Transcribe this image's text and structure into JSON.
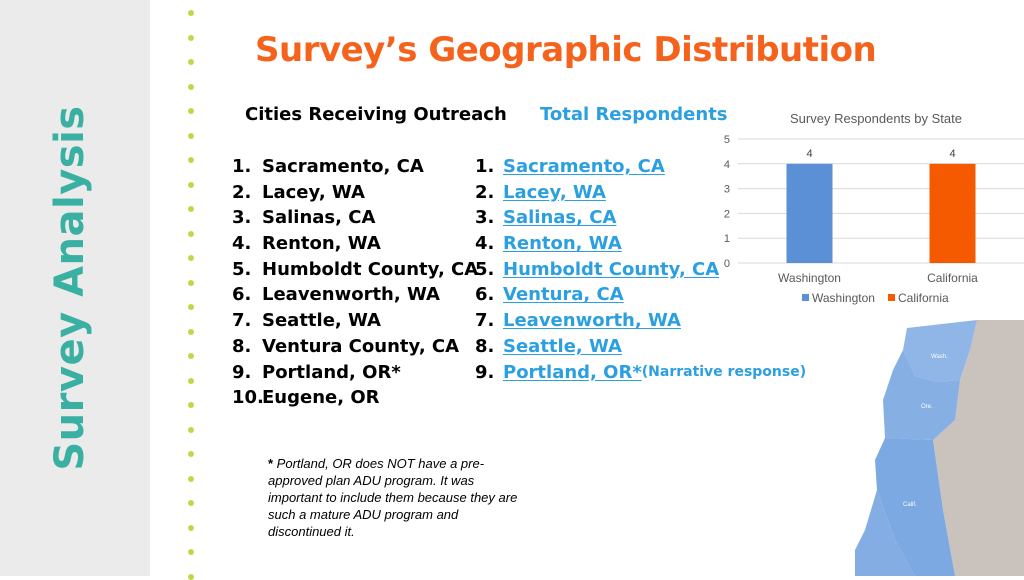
{
  "sidebar": {
    "vertical_title": "Survey Analysis"
  },
  "title": "Survey’s Geographic Distribution",
  "outreach": {
    "heading": "Cities Receiving Outreach",
    "items": [
      {
        "num": "1.",
        "name": "Sacramento, CA"
      },
      {
        "num": "2.",
        "name": "Lacey, WA"
      },
      {
        "num": "3.",
        "name": "Salinas, CA"
      },
      {
        "num": "4.",
        "name": "Renton, WA"
      },
      {
        "num": "5.",
        "name": "Humboldt County, CA"
      },
      {
        "num": "6.",
        "name": "Leavenworth, WA"
      },
      {
        "num": "7.",
        "name": "Seattle, WA"
      },
      {
        "num": "8.",
        "name": "Ventura County, CA"
      },
      {
        "num": "9.",
        "name": "Portland, OR*"
      },
      {
        "num": "10.",
        "name": "Eugene, OR"
      }
    ]
  },
  "respondents": {
    "heading": "Total Respondents",
    "items": [
      {
        "num": "1.",
        "name": "Sacramento, CA"
      },
      {
        "num": "2.",
        "name": "Lacey, WA"
      },
      {
        "num": "3.",
        "name": "Salinas, CA"
      },
      {
        "num": "4.",
        "name": "Renton, WA"
      },
      {
        "num": "5.",
        "name": "Humboldt County, CA"
      },
      {
        "num": "6.",
        "name": "Ventura, CA"
      },
      {
        "num": "7.",
        "name": "Leavenworth, WA"
      },
      {
        "num": "8.",
        "name": "Seattle, WA"
      },
      {
        "num": "9.",
        "name": "Portland, OR*",
        "note": " (Narrative response)"
      }
    ]
  },
  "footnote": {
    "star": "*",
    "text": " Portland, OR does NOT have a pre-approved plan ADU program. It was important to include them because they are such a mature ADU program and discontinued it."
  },
  "map": {
    "labels": {
      "wash": "Wash.",
      "ore": "Ore.",
      "calif": "Calif."
    }
  },
  "chart_data": {
    "type": "bar",
    "title": "Survey Respondents by State",
    "categories": [
      "Washington",
      "California"
    ],
    "values": [
      4,
      4
    ],
    "data_labels": [
      "4",
      "4"
    ],
    "colors": [
      "#5b8fd6",
      "#f55a00"
    ],
    "ylim": [
      0,
      5
    ],
    "yticks": [
      "0",
      "1",
      "2",
      "3",
      "4",
      "5"
    ],
    "grid": true,
    "legend": [
      "Washington",
      "California"
    ],
    "legend_position": "bottom"
  },
  "colors": {
    "accent_teal": "#3ab0a3",
    "title_orange": "#f4621c",
    "link_blue": "#2c9fe0",
    "dot_green": "#c3d64b"
  }
}
